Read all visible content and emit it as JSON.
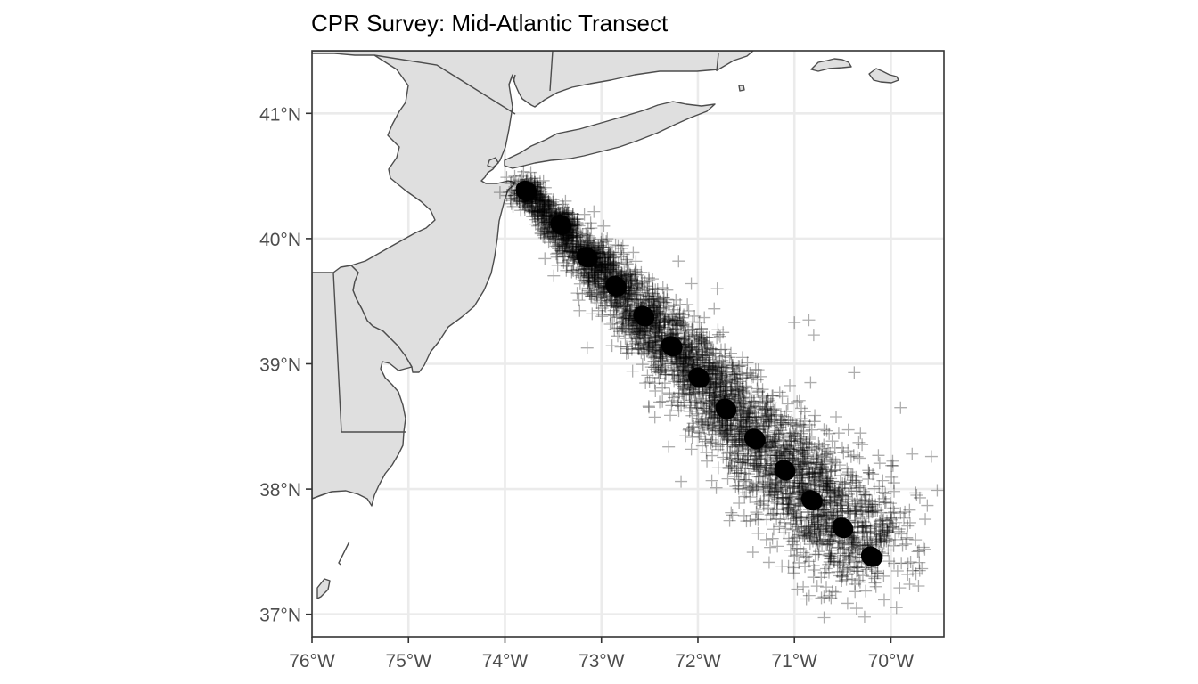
{
  "chart_data": {
    "type": "scatter",
    "projection": "map",
    "title": "CPR Survey: Mid-Atlantic Transect",
    "xlabel": "",
    "ylabel": "",
    "xlim": [
      -76.0,
      -69.45
    ],
    "ylim": [
      36.82,
      41.5
    ],
    "x_ticks": [
      {
        "value": -76,
        "label": "76°W"
      },
      {
        "value": -75,
        "label": "75°W"
      },
      {
        "value": -74,
        "label": "74°W"
      },
      {
        "value": -73,
        "label": "73°W"
      },
      {
        "value": -72,
        "label": "72°W"
      },
      {
        "value": -71,
        "label": "71°W"
      },
      {
        "value": -70,
        "label": "70°W"
      }
    ],
    "y_ticks": [
      {
        "value": 37,
        "label": "37°N"
      },
      {
        "value": 38,
        "label": "38°N"
      },
      {
        "value": 39,
        "label": "39°N"
      },
      {
        "value": 40,
        "label": "40°N"
      },
      {
        "value": 41,
        "label": "41°N"
      }
    ],
    "grid": true,
    "legend": "none",
    "marker": "plus",
    "colors": {
      "points": "#000000",
      "land": "#dfdfdf",
      "coast": "#4d4d4d",
      "grid": "#ebebeb",
      "axis_text": "#4d4d4d"
    },
    "transect": {
      "start": [
        -73.8,
        40.4
      ],
      "end": [
        -70.2,
        37.45
      ]
    },
    "series": [
      {
        "values": [
          {
            "lon": -73.78,
            "lat": 40.38
          },
          {
            "lon": -73.42,
            "lat": 40.11
          },
          {
            "lon": -73.15,
            "lat": 39.85
          },
          {
            "lon": -72.85,
            "lat": 39.62
          },
          {
            "lon": -72.56,
            "lat": 39.38
          },
          {
            "lon": -72.27,
            "lat": 39.14
          },
          {
            "lon": -71.99,
            "lat": 38.89
          },
          {
            "lon": -71.71,
            "lat": 38.64
          },
          {
            "lon": -71.41,
            "lat": 38.4
          },
          {
            "lon": -71.1,
            "lat": 38.15
          },
          {
            "lon": -70.82,
            "lat": 37.91
          },
          {
            "lon": -70.5,
            "lat": 37.69
          },
          {
            "lon": -70.2,
            "lat": 37.46
          }
        ]
      }
    ],
    "outliers": [
      {
        "lon": -72.2,
        "lat": 39.82
      },
      {
        "lon": -71.8,
        "lat": 39.6
      },
      {
        "lon": -71.0,
        "lat": 39.33
      },
      {
        "lon": -70.8,
        "lat": 39.23
      },
      {
        "lon": -70.85,
        "lat": 39.35
      },
      {
        "lon": -70.38,
        "lat": 38.93
      },
      {
        "lon": -69.9,
        "lat": 38.65
      },
      {
        "lon": -69.78,
        "lat": 38.28
      },
      {
        "lon": -69.58,
        "lat": 38.26
      },
      {
        "lon": -69.52,
        "lat": 37.99
      },
      {
        "lon": -69.7,
        "lat": 37.93
      },
      {
        "lon": -71.81,
        "lat": 38.01
      },
      {
        "lon": -71.5,
        "lat": 37.97
      },
      {
        "lon": -71.38,
        "lat": 37.8
      },
      {
        "lon": -70.97,
        "lat": 37.2
      },
      {
        "lon": -70.72,
        "lat": 37.13
      },
      {
        "lon": -70.62,
        "lat": 37.13
      }
    ]
  }
}
